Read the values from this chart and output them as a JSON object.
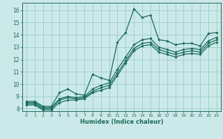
{
  "xlabel": "Humidex (Indice chaleur)",
  "bg_color": "#cce9e9",
  "grid_color": "#99cccc",
  "line_color": "#1a6b5a",
  "xlim": [
    -0.5,
    23.5
  ],
  "ylim": [
    7.8,
    16.6
  ],
  "xticks": [
    0,
    1,
    2,
    3,
    4,
    5,
    6,
    7,
    8,
    9,
    10,
    11,
    12,
    13,
    14,
    15,
    16,
    17,
    18,
    19,
    20,
    21,
    22,
    23
  ],
  "yticks": [
    8,
    9,
    10,
    11,
    12,
    13,
    14,
    15,
    16
  ],
  "lines": [
    {
      "x": [
        0,
        1,
        2,
        3,
        4,
        5,
        6,
        7,
        8,
        9,
        10,
        11,
        12,
        13,
        14,
        15,
        16,
        17,
        18,
        19,
        20,
        21,
        22,
        23
      ],
      "y": [
        8.6,
        8.6,
        8.2,
        8.2,
        9.3,
        9.6,
        9.2,
        9.1,
        10.8,
        10.5,
        10.3,
        13.4,
        14.2,
        16.1,
        15.4,
        15.6,
        13.6,
        13.5,
        13.2,
        13.3,
        13.3,
        13.1,
        14.1,
        14.2
      ]
    },
    {
      "x": [
        0,
        1,
        2,
        3,
        4,
        5,
        6,
        7,
        8,
        9,
        10,
        11,
        12,
        13,
        14,
        15,
        16,
        17,
        18,
        19,
        20,
        21,
        22,
        23
      ],
      "y": [
        8.5,
        8.5,
        8.1,
        8.1,
        8.8,
        9.0,
        8.9,
        9.0,
        9.6,
        9.9,
        10.1,
        11.2,
        12.2,
        13.2,
        13.6,
        13.7,
        13.0,
        12.8,
        12.6,
        12.8,
        12.9,
        12.8,
        13.5,
        13.8
      ]
    },
    {
      "x": [
        0,
        1,
        2,
        3,
        4,
        5,
        6,
        7,
        8,
        9,
        10,
        11,
        12,
        13,
        14,
        15,
        16,
        17,
        18,
        19,
        20,
        21,
        22,
        23
      ],
      "y": [
        8.4,
        8.4,
        8.0,
        8.0,
        8.7,
        8.9,
        8.8,
        8.9,
        9.4,
        9.7,
        9.9,
        10.9,
        11.9,
        12.9,
        13.3,
        13.4,
        12.8,
        12.6,
        12.4,
        12.6,
        12.7,
        12.6,
        13.3,
        13.6
      ]
    },
    {
      "x": [
        0,
        1,
        2,
        3,
        4,
        5,
        6,
        7,
        8,
        9,
        10,
        11,
        12,
        13,
        14,
        15,
        16,
        17,
        18,
        19,
        20,
        21,
        22,
        23
      ],
      "y": [
        8.3,
        8.3,
        7.9,
        7.9,
        8.5,
        8.7,
        8.7,
        8.8,
        9.3,
        9.5,
        9.7,
        10.7,
        11.7,
        12.7,
        13.1,
        13.2,
        12.6,
        12.4,
        12.2,
        12.4,
        12.5,
        12.4,
        13.1,
        13.4
      ]
    }
  ]
}
